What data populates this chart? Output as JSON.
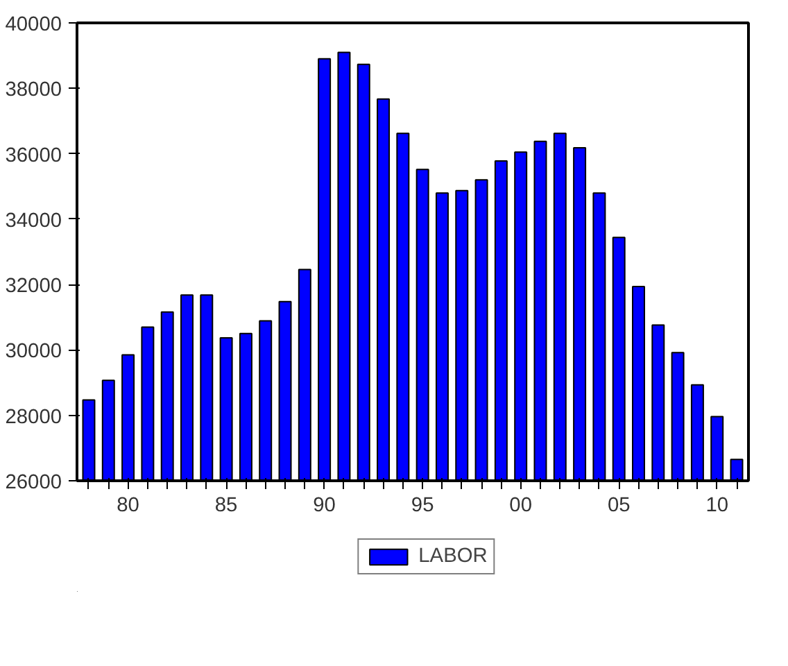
{
  "chart_data": {
    "type": "bar",
    "x": [
      1978,
      1979,
      1980,
      1981,
      1982,
      1983,
      1984,
      1985,
      1986,
      1987,
      1988,
      1989,
      1990,
      1991,
      1992,
      1993,
      1994,
      1995,
      1996,
      1997,
      1998,
      1999,
      2000,
      2001,
      2002,
      2003,
      2004,
      2005,
      2006,
      2007,
      2008,
      2009,
      2010,
      2011
    ],
    "series": [
      {
        "name": "LABOR",
        "color": "#0000ff",
        "values": [
          28470,
          29070,
          29850,
          30700,
          31160,
          31680,
          31680,
          30370,
          30500,
          30890,
          31480,
          32460,
          38900,
          39100,
          38730,
          37670,
          36620,
          35520,
          34800,
          34870,
          35200,
          35780,
          36050,
          36380,
          36620,
          36180,
          34800,
          33440,
          31940,
          30760,
          29920,
          28930,
          27960,
          26650
        ]
      }
    ],
    "xlim": [
      1977.4,
      2011.6
    ],
    "xticks": [
      {
        "value": 1978,
        "label": null
      },
      {
        "value": 1979,
        "label": null
      },
      {
        "value": 1980,
        "label": "80"
      },
      {
        "value": 1981,
        "label": null
      },
      {
        "value": 1982,
        "label": null
      },
      {
        "value": 1983,
        "label": null
      },
      {
        "value": 1984,
        "label": null
      },
      {
        "value": 1985,
        "label": "85"
      },
      {
        "value": 1986,
        "label": null
      },
      {
        "value": 1987,
        "label": null
      },
      {
        "value": 1988,
        "label": null
      },
      {
        "value": 1989,
        "label": null
      },
      {
        "value": 1990,
        "label": "90"
      },
      {
        "value": 1991,
        "label": null
      },
      {
        "value": 1992,
        "label": null
      },
      {
        "value": 1993,
        "label": null
      },
      {
        "value": 1994,
        "label": null
      },
      {
        "value": 1995,
        "label": "95"
      },
      {
        "value": 1996,
        "label": null
      },
      {
        "value": 1997,
        "label": null
      },
      {
        "value": 1998,
        "label": null
      },
      {
        "value": 1999,
        "label": null
      },
      {
        "value": 2000,
        "label": "00"
      },
      {
        "value": 2001,
        "label": null
      },
      {
        "value": 2002,
        "label": null
      },
      {
        "value": 2003,
        "label": null
      },
      {
        "value": 2004,
        "label": null
      },
      {
        "value": 2005,
        "label": "05"
      },
      {
        "value": 2006,
        "label": null
      },
      {
        "value": 2007,
        "label": null
      },
      {
        "value": 2008,
        "label": null
      },
      {
        "value": 2009,
        "label": null
      },
      {
        "value": 2010,
        "label": "10"
      },
      {
        "value": 2011,
        "label": null
      }
    ],
    "ylim": [
      26000,
      40000
    ],
    "yticks": [
      26000,
      28000,
      30000,
      32000,
      34000,
      36000,
      38000,
      40000
    ],
    "grid": false,
    "legend": "bottom"
  }
}
